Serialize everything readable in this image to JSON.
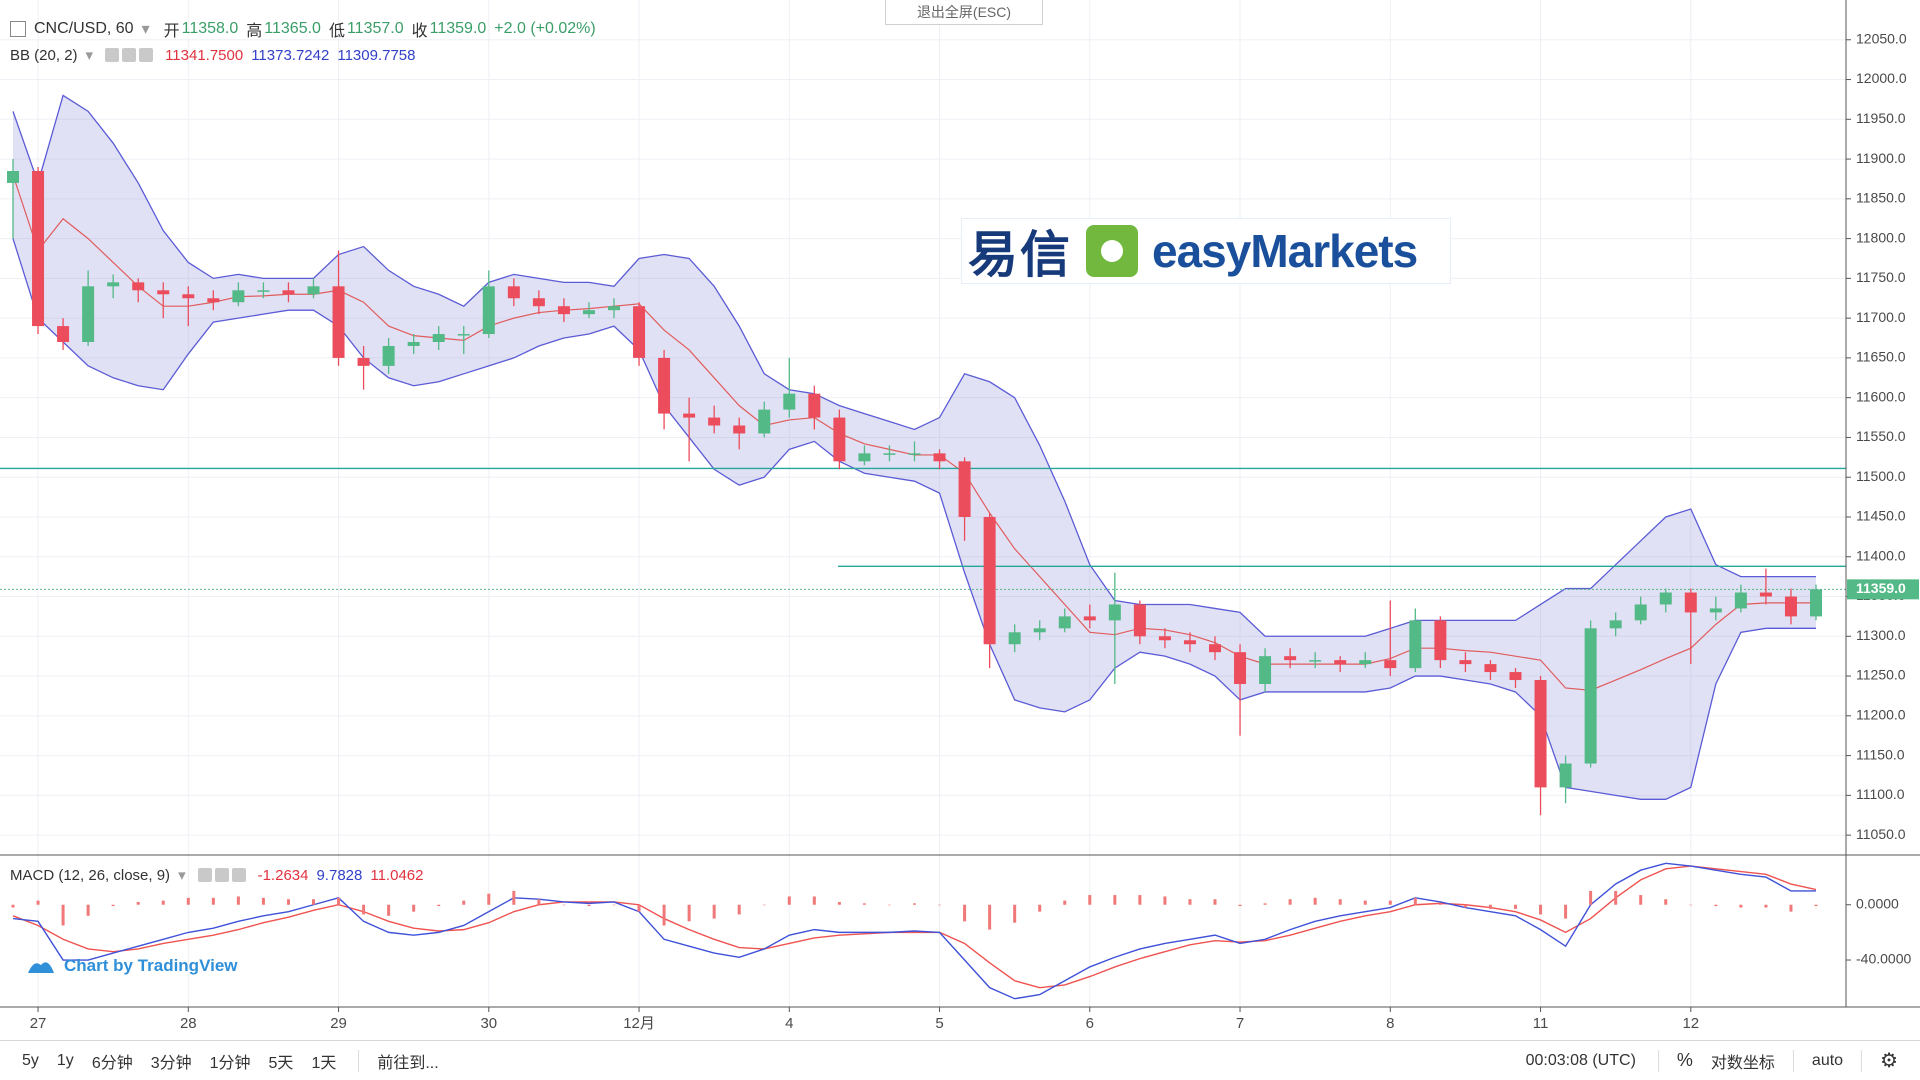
{
  "ui": {
    "exit_fullscreen": "退出全屏(ESC)",
    "watermark_cn": "易信",
    "watermark_en": "easyMarkets",
    "tradingview": "Chart by TradingView",
    "toolbar": [
      "5y",
      "1y",
      "6分钟",
      "3分钟",
      "1分钟",
      "5天",
      "1天",
      "前往到..."
    ],
    "clock": "00:03:08 (UTC)",
    "percent": "%",
    "log_scale": "对数坐标",
    "auto": "auto"
  },
  "chart_data": [
    {
      "type": "candlestick",
      "title": "CNC/USD, 60",
      "ohlc_legend": [
        {
          "label": "开",
          "value": "11358.0"
        },
        {
          "label": "高",
          "value": "11365.0"
        },
        {
          "label": "低",
          "value": "11357.0"
        },
        {
          "label": "收",
          "value": "11359.0"
        }
      ],
      "change": "+2.0 (+0.02%)",
      "categories": [
        null,
        "27",
        null,
        null,
        null,
        null,
        null,
        "28",
        null,
        null,
        null,
        null,
        null,
        "29",
        null,
        null,
        null,
        null,
        null,
        "30",
        null,
        null,
        null,
        null,
        null,
        "12月",
        null,
        null,
        null,
        null,
        null,
        "4",
        null,
        null,
        null,
        null,
        null,
        "5",
        null,
        null,
        null,
        null,
        null,
        "6",
        null,
        null,
        null,
        null,
        null,
        "7",
        null,
        null,
        null,
        null,
        null,
        "8",
        null,
        null,
        null,
        null,
        null,
        "11",
        null,
        null,
        null,
        null,
        null,
        "12",
        null,
        null,
        null,
        null,
        null
      ],
      "candles": [
        [
          11870,
          11900,
          11800,
          11885
        ],
        [
          11885,
          11890,
          11680,
          11690
        ],
        [
          11690,
          11700,
          11660,
          11670
        ],
        [
          11670,
          11760,
          11665,
          11740
        ],
        [
          11740,
          11755,
          11725,
          11745
        ],
        [
          11745,
          11750,
          11720,
          11735
        ],
        [
          11735,
          11745,
          11700,
          11730
        ],
        [
          11730,
          11740,
          11690,
          11725
        ],
        [
          11725,
          11735,
          11710,
          11720
        ],
        [
          11720,
          11745,
          11715,
          11735
        ],
        [
          11735,
          11745,
          11725,
          11735
        ],
        [
          11735,
          11745,
          11720,
          11730
        ],
        [
          11730,
          11750,
          11725,
          11740
        ],
        [
          11740,
          11785,
          11640,
          11650
        ],
        [
          11650,
          11665,
          11610,
          11640
        ],
        [
          11640,
          11675,
          11630,
          11665
        ],
        [
          11665,
          11680,
          11655,
          11670
        ],
        [
          11670,
          11690,
          11660,
          11680
        ],
        [
          11680,
          11690,
          11655,
          11680
        ],
        [
          11680,
          11760,
          11675,
          11740
        ],
        [
          11740,
          11750,
          11715,
          11725
        ],
        [
          11725,
          11735,
          11705,
          11715
        ],
        [
          11715,
          11725,
          11695,
          11705
        ],
        [
          11705,
          11720,
          11700,
          11710
        ],
        [
          11710,
          11725,
          11700,
          11715
        ],
        [
          11715,
          11720,
          11640,
          11650
        ],
        [
          11650,
          11660,
          11560,
          11580
        ],
        [
          11580,
          11600,
          11520,
          11575
        ],
        [
          11575,
          11590,
          11555,
          11565
        ],
        [
          11565,
          11575,
          11535,
          11555
        ],
        [
          11555,
          11595,
          11550,
          11585
        ],
        [
          11585,
          11650,
          11575,
          11605
        ],
        [
          11605,
          11615,
          11560,
          11575
        ],
        [
          11575,
          11585,
          11510,
          11520
        ],
        [
          11520,
          11540,
          11515,
          11530
        ],
        [
          11530,
          11540,
          11520,
          11530
        ],
        [
          11530,
          11545,
          11520,
          11530
        ],
        [
          11530,
          11535,
          11510,
          11520
        ],
        [
          11520,
          11525,
          11420,
          11450
        ],
        [
          11450,
          11455,
          11260,
          11290
        ],
        [
          11290,
          11315,
          11280,
          11305
        ],
        [
          11305,
          11320,
          11295,
          11310
        ],
        [
          11310,
          11335,
          11305,
          11325
        ],
        [
          11325,
          11340,
          11310,
          11320
        ],
        [
          11320,
          11380,
          11240,
          11340
        ],
        [
          11340,
          11345,
          11290,
          11300
        ],
        [
          11300,
          11310,
          11285,
          11295
        ],
        [
          11295,
          11305,
          11280,
          11290
        ],
        [
          11290,
          11300,
          11270,
          11280
        ],
        [
          11280,
          11290,
          11175,
          11240
        ],
        [
          11240,
          11285,
          11230,
          11275
        ],
        [
          11275,
          11285,
          11260,
          11270
        ],
        [
          11270,
          11280,
          11260,
          11270
        ],
        [
          11270,
          11275,
          11255,
          11265
        ],
        [
          11265,
          11280,
          11260,
          11270
        ],
        [
          11270,
          11345,
          11250,
          11260
        ],
        [
          11260,
          11335,
          11255,
          11320
        ],
        [
          11320,
          11325,
          11260,
          11270
        ],
        [
          11270,
          11280,
          11255,
          11265
        ],
        [
          11265,
          11270,
          11245,
          11255
        ],
        [
          11255,
          11260,
          11235,
          11245
        ],
        [
          11245,
          11250,
          11075,
          11110
        ],
        [
          11110,
          11150,
          11090,
          11140
        ],
        [
          11140,
          11320,
          11135,
          11310
        ],
        [
          11310,
          11330,
          11300,
          11320
        ],
        [
          11320,
          11350,
          11315,
          11340
        ],
        [
          11340,
          11360,
          11330,
          11355
        ],
        [
          11355,
          11360,
          11265,
          11330
        ],
        [
          11330,
          11350,
          11320,
          11335
        ],
        [
          11335,
          11365,
          11330,
          11355
        ],
        [
          11355,
          11385,
          11340,
          11350
        ],
        [
          11350,
          11360,
          11315,
          11325
        ],
        [
          11325,
          11365,
          11320,
          11359
        ]
      ],
      "up_color": "#53b987",
      "down_color": "#eb4d5c",
      "ylim": [
        11025,
        12100
      ],
      "yticks": [
        {
          "value": 11050,
          "label": "11050.0"
        },
        {
          "value": 11100,
          "label": "11100.0"
        },
        {
          "value": 11150,
          "label": "11150.0"
        },
        {
          "value": 11200,
          "label": "11200.0"
        },
        {
          "value": 11250,
          "label": "11250.0"
        },
        {
          "value": 11300,
          "label": "11300.0"
        },
        {
          "value": 11350,
          "label": "11350.0"
        },
        {
          "value": 11400,
          "label": "11400.0"
        },
        {
          "value": 11450,
          "label": "11450.0"
        },
        {
          "value": 11500,
          "label": "11500.0"
        },
        {
          "value": 11550,
          "label": "11550.0"
        },
        {
          "value": 11600,
          "label": "11600.0"
        },
        {
          "value": 11650,
          "label": "11650.0"
        },
        {
          "value": 11700,
          "label": "11700.0"
        },
        {
          "value": 11750,
          "label": "11750.0"
        },
        {
          "value": 11800,
          "label": "11800.0"
        },
        {
          "value": 11850,
          "label": "11850.0"
        },
        {
          "value": 11900,
          "label": "11900.0"
        },
        {
          "value": 11950,
          "label": "11950.0"
        },
        {
          "value": 12000,
          "label": "12000.0"
        },
        {
          "value": 12050,
          "label": "12050.0"
        }
      ],
      "grid": true,
      "last_price": {
        "value": 11359,
        "label": "11359.0"
      },
      "hlines": [
        11511,
        11388
      ],
      "hline_color": "#26a69a",
      "bb": {
        "name": "BB (20, 2)",
        "legend": [
          "11341.7500",
          "11373.7242",
          "11309.7758"
        ],
        "color": "#5b5bd6",
        "fill": "rgba(120,120,210,0.22)",
        "basis_color": "#e05c5c",
        "upper": [
          11960,
          11870,
          11980,
          11960,
          11920,
          11870,
          11810,
          11770,
          11750,
          11755,
          11750,
          11750,
          11750,
          11780,
          11790,
          11760,
          11740,
          11730,
          11715,
          11745,
          11755,
          11750,
          11745,
          11745,
          11740,
          11775,
          11780,
          11775,
          11740,
          11690,
          11630,
          11610,
          11605,
          11590,
          11580,
          11570,
          11560,
          11575,
          11630,
          11620,
          11600,
          11540,
          11470,
          11390,
          11345,
          11340,
          11340,
          11340,
          11335,
          11330,
          11300,
          11300,
          11300,
          11300,
          11300,
          11310,
          11320,
          11320,
          11320,
          11320,
          11320,
          11340,
          11360,
          11360,
          11390,
          11420,
          11450,
          11460,
          11390,
          11375,
          11375,
          11375,
          11375
        ],
        "lower": [
          11800,
          11700,
          11670,
          11640,
          11625,
          11615,
          11610,
          11655,
          11695,
          11700,
          11705,
          11710,
          11710,
          11690,
          11650,
          11625,
          11615,
          11620,
          11630,
          11640,
          11650,
          11665,
          11675,
          11680,
          11690,
          11660,
          11590,
          11550,
          11510,
          11490,
          11500,
          11535,
          11545,
          11520,
          11505,
          11500,
          11495,
          11480,
          11380,
          11290,
          11220,
          11210,
          11205,
          11220,
          11260,
          11280,
          11275,
          11265,
          11250,
          11220,
          11230,
          11230,
          11230,
          11230,
          11230,
          11235,
          11250,
          11250,
          11245,
          11240,
          11230,
          11200,
          11110,
          11105,
          11100,
          11095,
          11095,
          11110,
          11240,
          11305,
          11310,
          11310,
          11310
        ],
        "basis": [
          11880,
          11785,
          11825,
          11800,
          11770,
          11740,
          11715,
          11715,
          11720,
          11727,
          11728,
          11730,
          11730,
          11735,
          11720,
          11690,
          11678,
          11675,
          11672,
          11690,
          11700,
          11707,
          11710,
          11712,
          11715,
          11718,
          11685,
          11660,
          11625,
          11590,
          11565,
          11572,
          11575,
          11555,
          11542,
          11535,
          11528,
          11528,
          11505,
          11455,
          11410,
          11375,
          11340,
          11305,
          11302,
          11310,
          11308,
          11302,
          11292,
          11275,
          11265,
          11265,
          11265,
          11265,
          11265,
          11272,
          11285,
          11285,
          11282,
          11280,
          11275,
          11270,
          11235,
          11232,
          11245,
          11258,
          11272,
          11285,
          11315,
          11340,
          11342,
          11342,
          11342
        ]
      }
    },
    {
      "type": "macd",
      "name": "MACD (12, 26, close, 9)",
      "legend": [
        "-1.2634",
        "9.7828",
        "11.0462"
      ],
      "macd": [
        -10,
        -12,
        -40,
        -40,
        -35,
        -30,
        -25,
        -20,
        -17,
        -12,
        -8,
        -5,
        0,
        5,
        -12,
        -20,
        -22,
        -20,
        -15,
        -5,
        5,
        4,
        2,
        1,
        2,
        -5,
        -25,
        -30,
        -35,
        -38,
        -32,
        -22,
        -18,
        -20,
        -20,
        -20,
        -19,
        -20,
        -40,
        -60,
        -68,
        -65,
        -55,
        -45,
        -38,
        -32,
        -28,
        -25,
        -22,
        -28,
        -25,
        -18,
        -12,
        -8,
        -5,
        -2,
        5,
        2,
        -2,
        -5,
        -8,
        -18,
        -30,
        0,
        15,
        25,
        30,
        28,
        25,
        22,
        20,
        10,
        10
      ],
      "signal": [
        -8,
        -15,
        -25,
        -32,
        -34,
        -32,
        -28,
        -25,
        -22,
        -18,
        -13,
        -9,
        -4,
        0,
        -5,
        -12,
        -17,
        -19,
        -18,
        -13,
        -5,
        0,
        2,
        2,
        2,
        0,
        -10,
        -18,
        -25,
        -31,
        -32,
        -28,
        -24,
        -22,
        -21,
        -20,
        -20,
        -20,
        -28,
        -42,
        -55,
        -60,
        -58,
        -52,
        -45,
        -39,
        -34,
        -29,
        -26,
        -27,
        -26,
        -22,
        -17,
        -12,
        -8,
        -5,
        0,
        1,
        0,
        -2,
        -5,
        -11,
        -20,
        -10,
        5,
        18,
        26,
        28,
        26,
        24,
        22,
        15,
        11
      ],
      "hist": [
        -2,
        3,
        -15,
        -8,
        -1,
        2,
        3,
        5,
        5,
        6,
        5,
        4,
        4,
        5,
        -7,
        -8,
        -5,
        -1,
        3,
        8,
        10,
        4,
        0,
        -1,
        0,
        -5,
        -15,
        -12,
        -10,
        -7,
        0,
        6,
        6,
        2,
        1,
        0,
        1,
        0,
        -12,
        -18,
        -13,
        -5,
        3,
        7,
        7,
        7,
        6,
        4,
        4,
        -1,
        1,
        4,
        5,
        4,
        3,
        3,
        5,
        1,
        -2,
        -3,
        -3,
        -7,
        -10,
        10,
        10,
        7,
        4,
        0,
        -1,
        -2,
        -2,
        -5,
        -1
      ],
      "macd_color": "#3f51d8",
      "signal_color": "#ef5350",
      "hist_color": "#f07878",
      "ylim": [
        -74,
        36
      ],
      "yticks": [
        {
          "value": -40,
          "label": "-40.0000"
        },
        {
          "value": 0,
          "label": "0.0000"
        }
      ]
    }
  ]
}
